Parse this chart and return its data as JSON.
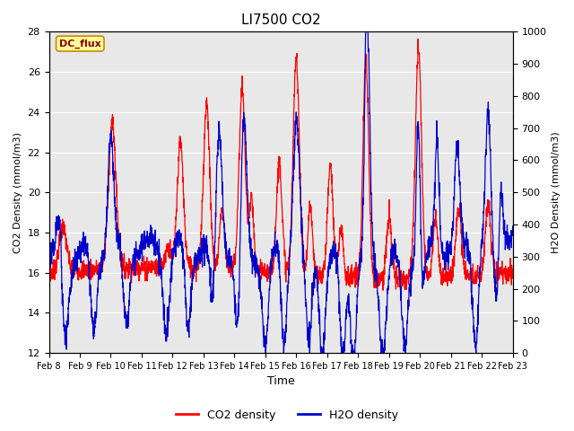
{
  "title": "LI7500 CO2",
  "xlabel": "Time",
  "ylabel_left": "CO2 Density (mmol/m3)",
  "ylabel_right": "H2O Density (mmol/m3)",
  "ylim_left": [
    12,
    28
  ],
  "ylim_right": [
    0,
    1000
  ],
  "yticks_left": [
    12,
    14,
    16,
    18,
    20,
    22,
    24,
    26,
    28
  ],
  "yticks_right": [
    0,
    100,
    200,
    300,
    400,
    500,
    600,
    700,
    800,
    900,
    1000
  ],
  "xtick_labels": [
    "Feb 8",
    "Feb 9",
    "Feb 10",
    "Feb 11",
    "Feb 12",
    "Feb 13",
    "Feb 14",
    "Feb 15",
    "Feb 16",
    "Feb 17",
    "Feb 18",
    "Feb 19",
    "Feb 20",
    "Feb 21",
    "Feb 22",
    "Feb 23"
  ],
  "co2_color": "#FF0000",
  "h2o_color": "#0000CC",
  "background_color": "#E8E8E8",
  "legend_label_co2": "CO2 density",
  "legend_label_h2o": "H2O density",
  "annotation_text": "DC_flux",
  "annotation_color": "#8B0000",
  "annotation_bg": "#FFFF99",
  "annotation_border": "#CC8800",
  "figsize": [
    6.4,
    4.8
  ],
  "dpi": 100
}
